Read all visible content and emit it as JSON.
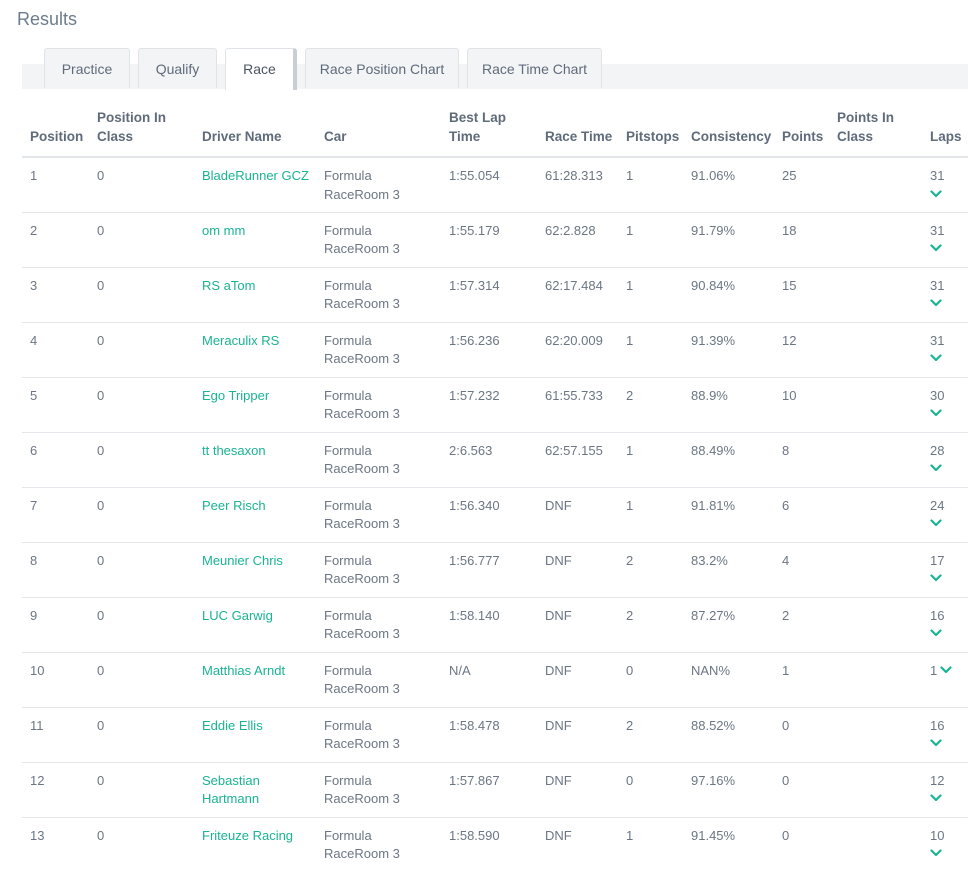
{
  "page": {
    "title": "Results"
  },
  "tabs": [
    {
      "label": "Practice",
      "active": false
    },
    {
      "label": "Qualify",
      "active": false
    },
    {
      "label": "Race",
      "active": true
    },
    {
      "label": "Race Position Chart",
      "active": false
    },
    {
      "label": "Race Time Chart",
      "active": false
    }
  ],
  "table": {
    "headers": {
      "position": "Position",
      "position_in_class": "Position In Class",
      "driver_name": "Driver Name",
      "car": "Car",
      "best_lap_time": "Best Lap Time",
      "race_time": "Race Time",
      "pitstops": "Pitstops",
      "consistency": "Consistency",
      "points": "Points",
      "points_in_class": "Points In Class",
      "laps": "Laps"
    },
    "rows": [
      {
        "position": "1",
        "position_in_class": "0",
        "driver": "BladeRunner GCZ",
        "car": "Formula RaceRoom 3",
        "best_lap": "1:55.054",
        "race_time": "61:28.313",
        "pitstops": "1",
        "consistency": "91.06%",
        "points": "25",
        "points_in_class": "",
        "laps": "31"
      },
      {
        "position": "2",
        "position_in_class": "0",
        "driver": "om mm",
        "car": "Formula RaceRoom 3",
        "best_lap": "1:55.179",
        "race_time": "62:2.828",
        "pitstops": "1",
        "consistency": "91.79%",
        "points": "18",
        "points_in_class": "",
        "laps": "31"
      },
      {
        "position": "3",
        "position_in_class": "0",
        "driver": "RS aTom",
        "car": "Formula RaceRoom 3",
        "best_lap": "1:57.314",
        "race_time": "62:17.484",
        "pitstops": "1",
        "consistency": "90.84%",
        "points": "15",
        "points_in_class": "",
        "laps": "31"
      },
      {
        "position": "4",
        "position_in_class": "0",
        "driver": "Meraculix RS",
        "car": "Formula RaceRoom 3",
        "best_lap": "1:56.236",
        "race_time": "62:20.009",
        "pitstops": "1",
        "consistency": "91.39%",
        "points": "12",
        "points_in_class": "",
        "laps": "31"
      },
      {
        "position": "5",
        "position_in_class": "0",
        "driver": "Ego Tripper",
        "car": "Formula RaceRoom 3",
        "best_lap": "1:57.232",
        "race_time": "61:55.733",
        "pitstops": "2",
        "consistency": "88.9%",
        "points": "10",
        "points_in_class": "",
        "laps": "30"
      },
      {
        "position": "6",
        "position_in_class": "0",
        "driver": "tt thesaxon",
        "car": "Formula RaceRoom 3",
        "best_lap": "2:6.563",
        "race_time": "62:57.155",
        "pitstops": "1",
        "consistency": "88.49%",
        "points": "8",
        "points_in_class": "",
        "laps": "28"
      },
      {
        "position": "7",
        "position_in_class": "0",
        "driver": "Peer Risch",
        "car": "Formula RaceRoom 3",
        "best_lap": "1:56.340",
        "race_time": "DNF",
        "pitstops": "1",
        "consistency": "91.81%",
        "points": "6",
        "points_in_class": "",
        "laps": "24"
      },
      {
        "position": "8",
        "position_in_class": "0",
        "driver": "Meunier Chris",
        "car": "Formula RaceRoom 3",
        "best_lap": "1:56.777",
        "race_time": "DNF",
        "pitstops": "2",
        "consistency": "83.2%",
        "points": "4",
        "points_in_class": "",
        "laps": "17"
      },
      {
        "position": "9",
        "position_in_class": "0",
        "driver": "LUC Garwig",
        "car": "Formula RaceRoom 3",
        "best_lap": "1:58.140",
        "race_time": "DNF",
        "pitstops": "2",
        "consistency": "87.27%",
        "points": "2",
        "points_in_class": "",
        "laps": "16"
      },
      {
        "position": "10",
        "position_in_class": "0",
        "driver": "Matthias Arndt",
        "car": "Formula RaceRoom 3",
        "best_lap": "N/A",
        "race_time": "DNF",
        "pitstops": "0",
        "consistency": "NAN%",
        "points": "1",
        "points_in_class": "",
        "laps": "1"
      },
      {
        "position": "11",
        "position_in_class": "0",
        "driver": "Eddie Ellis",
        "car": "Formula RaceRoom 3",
        "best_lap": "1:58.478",
        "race_time": "DNF",
        "pitstops": "2",
        "consistency": "88.52%",
        "points": "0",
        "points_in_class": "",
        "laps": "16"
      },
      {
        "position": "12",
        "position_in_class": "0",
        "driver": "Sebastian Hartmann",
        "car": "Formula RaceRoom 3",
        "best_lap": "1:57.867",
        "race_time": "DNF",
        "pitstops": "0",
        "consistency": "97.16%",
        "points": "0",
        "points_in_class": "",
        "laps": "12"
      },
      {
        "position": "13",
        "position_in_class": "0",
        "driver": "Friteuze Racing",
        "car": "Formula RaceRoom 3",
        "best_lap": "1:58.590",
        "race_time": "DNF",
        "pitstops": "1",
        "consistency": "91.45%",
        "points": "0",
        "points_in_class": "",
        "laps": "10"
      }
    ]
  },
  "icons": {
    "expand": "chevron-down-icon"
  },
  "colors": {
    "accent": "#1ab394",
    "text": "#6b7684",
    "tab_bg": "#f2f4f6"
  }
}
